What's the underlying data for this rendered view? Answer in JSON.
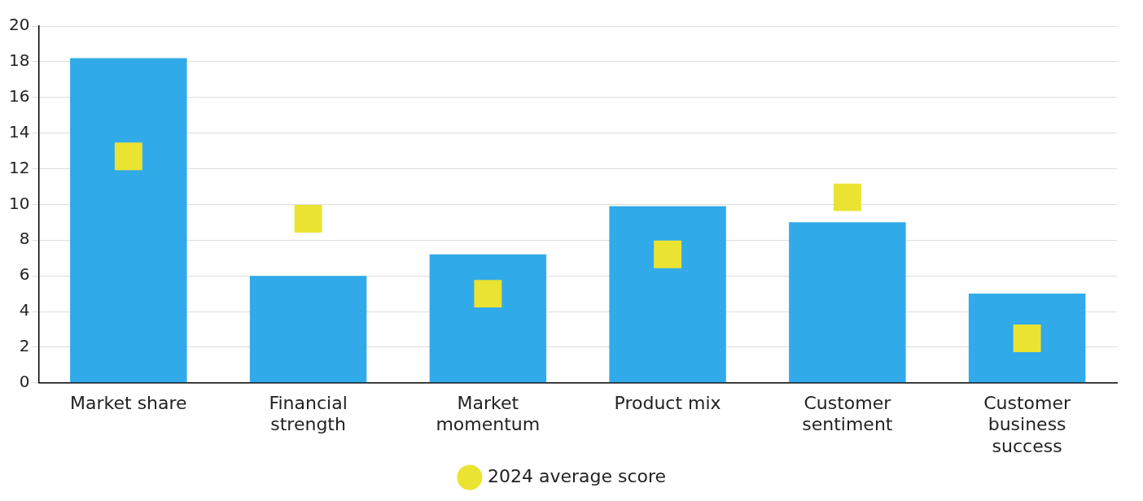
{
  "chart_data": {
    "type": "bar",
    "categories": [
      "Market share",
      "Financial strength",
      "Market momentum",
      "Product mix",
      "Customer sentiment",
      "Customer business success"
    ],
    "series": [
      {
        "color": "#31aaea",
        "values": [
          18.2,
          6.0,
          7.2,
          9.9,
          9.0,
          5.0
        ]
      },
      {
        "type": "scatter",
        "name": "2024 average score",
        "color": "#ebe332",
        "marker": "square",
        "x": [
          "Market share",
          "Financial strength",
          "Market momentum",
          "Product mix",
          "Customer sentiment",
          "Customer business success"
        ],
        "values": [
          12.7,
          9.2,
          5.0,
          7.2,
          10.4,
          2.5
        ]
      }
    ],
    "ylim": [
      0,
      20
    ],
    "yticks": [
      0,
      2,
      4,
      6,
      8,
      10,
      12,
      14,
      16,
      18,
      20
    ],
    "grid": "y",
    "legend": "bottom"
  }
}
